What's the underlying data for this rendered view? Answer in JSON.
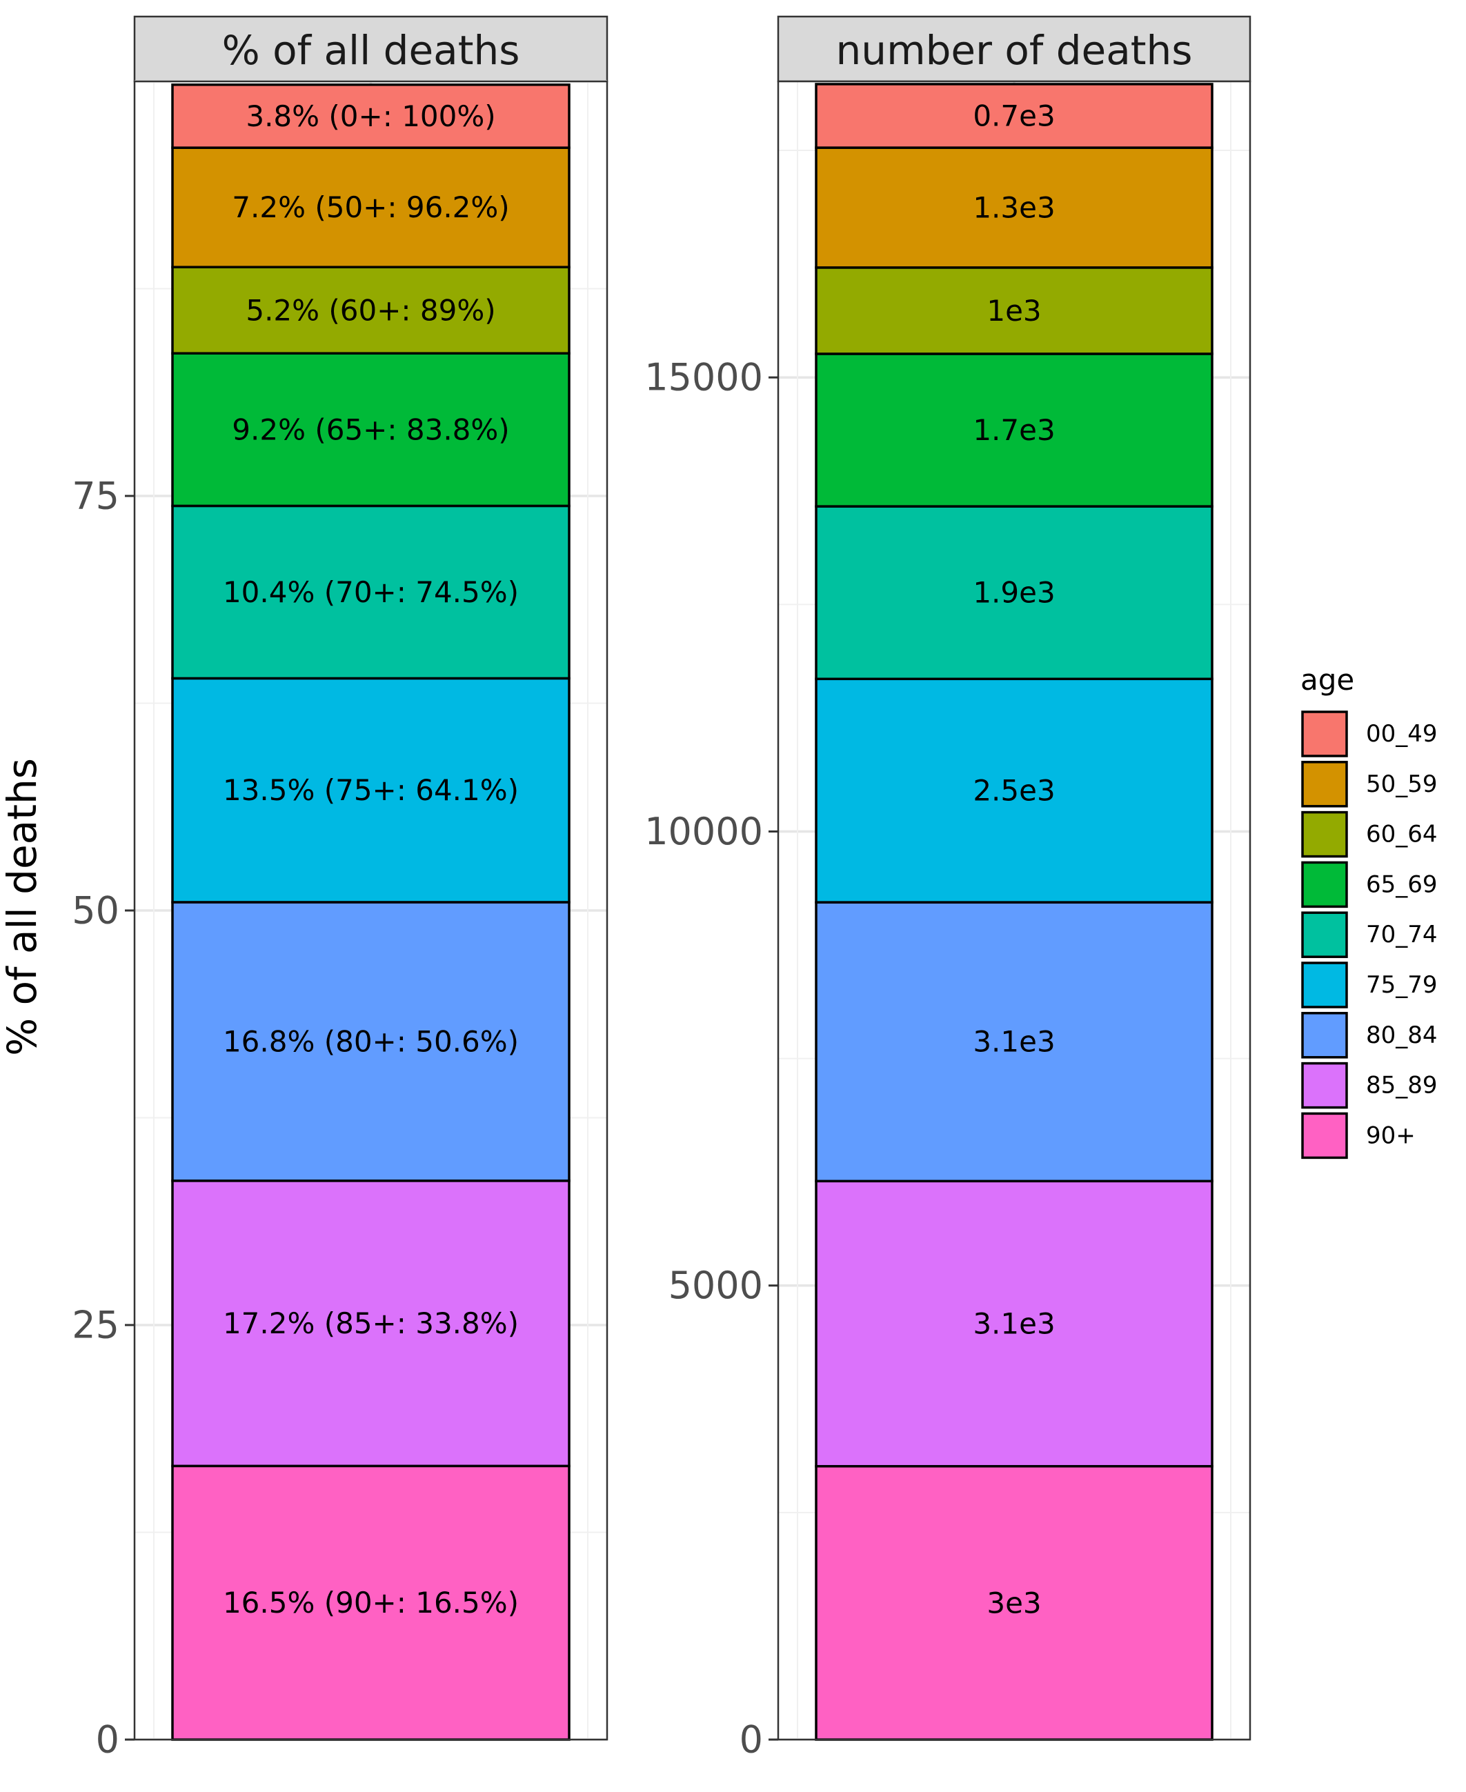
{
  "chart_data": {
    "type": "bar",
    "stacked": true,
    "facets": [
      {
        "strip_label": "% of all deaths",
        "ylabel": "% of all deaths",
        "ylim": [
          0,
          100
        ],
        "yticks": [
          0,
          25,
          50,
          75
        ],
        "ytick_labels": [
          "0",
          "25",
          "50",
          "75"
        ],
        "segments": [
          {
            "age": "90+",
            "value": 16.5,
            "label": "16.5% (90+: 16.5%)"
          },
          {
            "age": "85_89",
            "value": 17.2,
            "label": "17.2% (85+: 33.8%)"
          },
          {
            "age": "80_84",
            "value": 16.8,
            "label": "16.8% (80+: 50.6%)"
          },
          {
            "age": "75_79",
            "value": 13.5,
            "label": "13.5% (75+: 64.1%)"
          },
          {
            "age": "70_74",
            "value": 10.4,
            "label": "10.4% (70+: 74.5%)"
          },
          {
            "age": "65_69",
            "value": 9.2,
            "label": "9.2% (65+: 83.8%)"
          },
          {
            "age": "60_64",
            "value": 5.2,
            "label": "5.2% (60+: 89%)"
          },
          {
            "age": "50_59",
            "value": 7.2,
            "label": "7.2% (50+: 96.2%)"
          },
          {
            "age": "00_49",
            "value": 3.8,
            "label": "3.8% (0+: 100%)"
          }
        ]
      },
      {
        "strip_label": "number of deaths",
        "ylabel": "",
        "ylim": [
          0,
          18260
        ],
        "yticks": [
          0,
          5000,
          10000,
          15000
        ],
        "ytick_labels": [
          "0",
          "5000",
          "10000",
          "15000"
        ],
        "segments": [
          {
            "age": "90+",
            "value": 3010,
            "label": "3e3"
          },
          {
            "age": "85_89",
            "value": 3140,
            "label": "3.1e3"
          },
          {
            "age": "80_84",
            "value": 3070,
            "label": "3.1e3"
          },
          {
            "age": "75_79",
            "value": 2460,
            "label": "2.5e3"
          },
          {
            "age": "70_74",
            "value": 1900,
            "label": "1.9e3"
          },
          {
            "age": "65_69",
            "value": 1680,
            "label": "1.7e3"
          },
          {
            "age": "60_64",
            "value": 950,
            "label": "1e3"
          },
          {
            "age": "50_59",
            "value": 1320,
            "label": "1.3e3"
          },
          {
            "age": "00_49",
            "value": 700,
            "label": "0.7e3"
          }
        ]
      }
    ],
    "legend": {
      "title": "age",
      "position": "right",
      "items": [
        {
          "label": "00_49",
          "color": "#F8766D"
        },
        {
          "label": "50_59",
          "color": "#D39200"
        },
        {
          "label": "60_64",
          "color": "#93AA00"
        },
        {
          "label": "65_69",
          "color": "#00BA38"
        },
        {
          "label": "70_74",
          "color": "#00C19F"
        },
        {
          "label": "75_79",
          "color": "#00B9E3"
        },
        {
          "label": "80_84",
          "color": "#619CFF"
        },
        {
          "label": "85_89",
          "color": "#DB72FB"
        },
        {
          "label": "90+",
          "color": "#FF61C3"
        }
      ]
    },
    "grid": true,
    "theme": "bw"
  }
}
